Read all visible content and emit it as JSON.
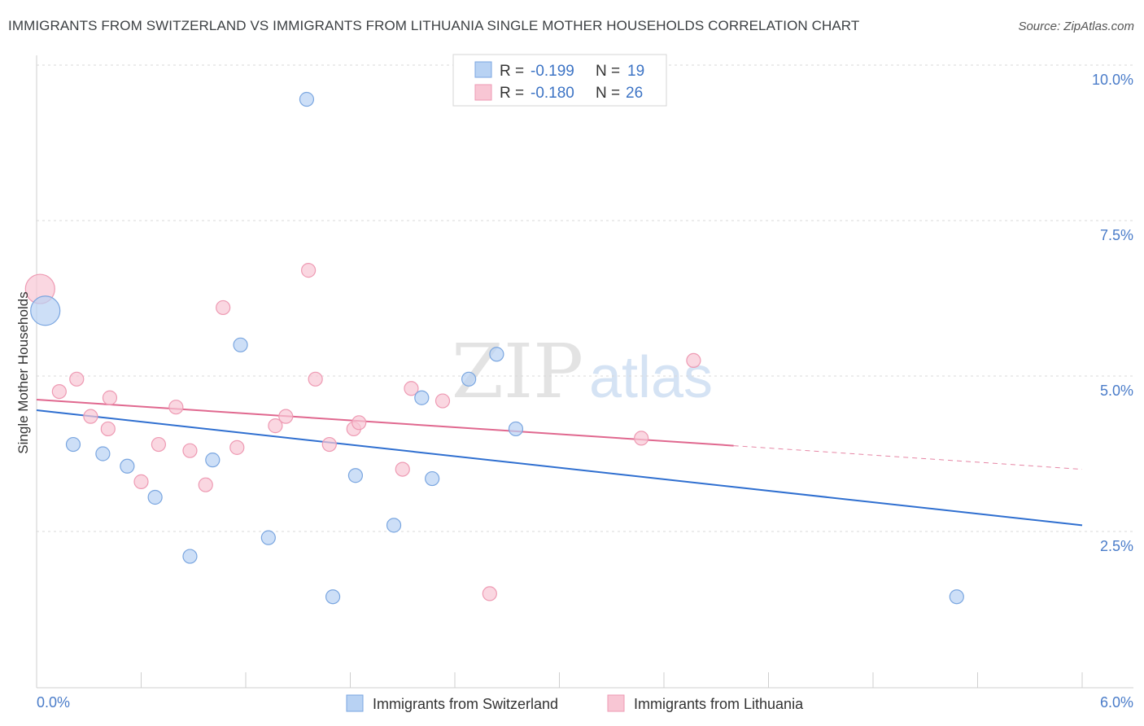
{
  "title": "IMMIGRANTS FROM SWITZERLAND VS IMMIGRANTS FROM LITHUANIA SINGLE MOTHER HOUSEHOLDS CORRELATION CHART",
  "source": "Source: ZipAtlas.com",
  "watermark": {
    "zip": "ZIP",
    "atlas": "atlas"
  },
  "colors": {
    "switzerland_fill": "#b8d2f3",
    "switzerland_stroke": "#7aa6e0",
    "switzerland_line": "#2f6fd0",
    "lithuania_fill": "#f8c6d4",
    "lithuania_stroke": "#ee9ab3",
    "lithuania_line": "#e0688f",
    "axis_label": "#4a7cc9"
  },
  "legend": {
    "rows": [
      {
        "r_label": "R =",
        "r_value": "-0.199",
        "n_label": "N =",
        "n_value": "19"
      },
      {
        "r_label": "R =",
        "r_value": "-0.180",
        "n_label": "N =",
        "n_value": "26"
      }
    ]
  },
  "chart_data": {
    "type": "scatter",
    "title": "IMMIGRANTS FROM SWITZERLAND VS IMMIGRANTS FROM LITHUANIA SINGLE MOTHER HOUSEHOLDS CORRELATION CHART",
    "xlabel": "",
    "ylabel": "Single Mother Households",
    "xlim": [
      0,
      6
    ],
    "ylim": [
      0,
      10.5
    ],
    "x_tick_labels": [
      "0.0%",
      "6.0%"
    ],
    "y_ticks": [
      2.5,
      5.0,
      7.5,
      10.0
    ],
    "y_tick_labels": [
      "2.5%",
      "5.0%",
      "7.5%",
      "10.0%"
    ],
    "series": [
      {
        "name": "Immigrants from Switzerland",
        "r": -0.199,
        "n": 19,
        "points": [
          {
            "x": 0.05,
            "y": 6.05,
            "size": "large"
          },
          {
            "x": 0.21,
            "y": 3.9
          },
          {
            "x": 0.38,
            "y": 3.75
          },
          {
            "x": 0.52,
            "y": 3.55
          },
          {
            "x": 0.68,
            "y": 3.05
          },
          {
            "x": 0.88,
            "y": 2.1
          },
          {
            "x": 1.01,
            "y": 3.65
          },
          {
            "x": 1.17,
            "y": 5.5
          },
          {
            "x": 1.33,
            "y": 2.4
          },
          {
            "x": 1.55,
            "y": 9.45
          },
          {
            "x": 1.7,
            "y": 1.45
          },
          {
            "x": 1.83,
            "y": 3.4
          },
          {
            "x": 2.05,
            "y": 2.6
          },
          {
            "x": 2.21,
            "y": 4.65
          },
          {
            "x": 2.27,
            "y": 3.35
          },
          {
            "x": 2.48,
            "y": 4.95
          },
          {
            "x": 2.64,
            "y": 5.35
          },
          {
            "x": 2.75,
            "y": 4.15
          },
          {
            "x": 5.28,
            "y": 1.45
          }
        ],
        "trend": {
          "x0": 0.0,
          "y0": 4.45,
          "x1": 6.0,
          "y1": 2.6
        }
      },
      {
        "name": "Immigrants from Lithuania",
        "r": -0.18,
        "n": 26,
        "points": [
          {
            "x": 0.02,
            "y": 6.4,
            "size": "large"
          },
          {
            "x": 0.13,
            "y": 4.75
          },
          {
            "x": 0.23,
            "y": 4.95
          },
          {
            "x": 0.31,
            "y": 4.35
          },
          {
            "x": 0.41,
            "y": 4.15
          },
          {
            "x": 0.42,
            "y": 4.65
          },
          {
            "x": 0.6,
            "y": 3.3
          },
          {
            "x": 0.7,
            "y": 3.9
          },
          {
            "x": 0.8,
            "y": 4.5
          },
          {
            "x": 0.88,
            "y": 3.8
          },
          {
            "x": 0.97,
            "y": 3.25
          },
          {
            "x": 1.07,
            "y": 6.1
          },
          {
            "x": 1.15,
            "y": 3.85
          },
          {
            "x": 1.37,
            "y": 4.2
          },
          {
            "x": 1.43,
            "y": 4.35
          },
          {
            "x": 1.56,
            "y": 6.7
          },
          {
            "x": 1.6,
            "y": 4.95
          },
          {
            "x": 1.68,
            "y": 3.9
          },
          {
            "x": 1.82,
            "y": 4.15
          },
          {
            "x": 1.85,
            "y": 4.25
          },
          {
            "x": 2.1,
            "y": 3.5
          },
          {
            "x": 2.15,
            "y": 4.8
          },
          {
            "x": 2.33,
            "y": 4.6
          },
          {
            "x": 2.6,
            "y": 1.5
          },
          {
            "x": 3.47,
            "y": 4.0
          },
          {
            "x": 3.77,
            "y": 5.25
          }
        ],
        "trend": {
          "x0": 0.0,
          "y0": 4.62,
          "x1": 4.0,
          "y1": 3.88
        },
        "trend_dashed": {
          "x0": 4.0,
          "y0": 3.88,
          "x1": 6.0,
          "y1": 3.5
        }
      }
    ],
    "legend_position": "top-center"
  }
}
